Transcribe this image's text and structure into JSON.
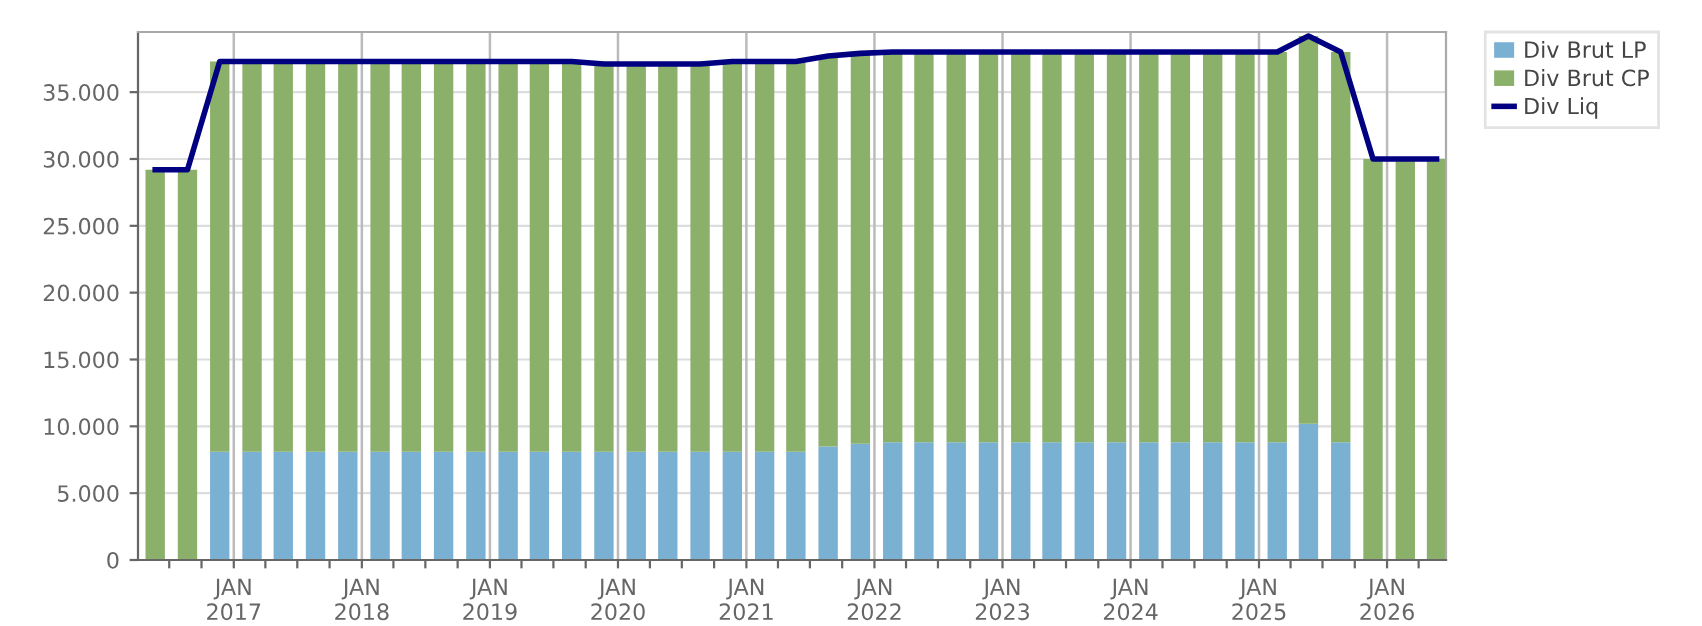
{
  "chart_data": {
    "type": "bar",
    "stacked": true,
    "x": [
      "2016-05-22",
      "2016-08-22",
      "2016-11-22",
      "2017-02-22",
      "2017-05-22",
      "2017-08-22",
      "2017-11-22",
      "2018-02-22",
      "2018-05-22",
      "2018-08-22",
      "2018-11-22",
      "2019-02-22",
      "2019-05-22",
      "2019-08-22",
      "2019-11-22",
      "2020-02-22",
      "2020-05-22",
      "2020-08-22",
      "2020-11-22",
      "2021-02-22",
      "2021-05-22",
      "2021-08-22",
      "2021-11-22",
      "2022-02-22",
      "2022-05-22",
      "2022-08-22",
      "2022-11-22",
      "2023-02-22",
      "2023-05-22",
      "2023-08-22",
      "2023-11-22",
      "2024-02-22",
      "2024-05-22",
      "2024-08-22",
      "2024-11-22",
      "2025-02-22",
      "2025-05-22",
      "2025-08-22",
      "2025-11-22",
      "2026-02-22",
      "2026-05-22"
    ],
    "series": [
      {
        "name": "Div Brut LP",
        "color": "#7ab0d2",
        "values": [
          null,
          null,
          8100,
          8100,
          8100,
          8100,
          8100,
          8100,
          8100,
          8100,
          8100,
          8100,
          8100,
          8100,
          8100,
          8100,
          8100,
          8100,
          8100,
          8100,
          8100,
          8500,
          8700,
          8800,
          8800,
          8800,
          8800,
          8800,
          8800,
          8800,
          8800,
          8800,
          8800,
          8800,
          8800,
          8800,
          10200,
          8800,
          null,
          null,
          null
        ]
      },
      {
        "name": "Div Brut CP",
        "color": "#8ab06a",
        "values": [
          29200,
          29200,
          29200,
          29200,
          29200,
          29200,
          29200,
          29200,
          29200,
          29200,
          29200,
          29200,
          29200,
          29200,
          29000,
          29000,
          29000,
          29000,
          29200,
          29200,
          29200,
          29200,
          29200,
          29200,
          29200,
          29200,
          29200,
          29200,
          29200,
          29200,
          29200,
          29200,
          29200,
          29200,
          29200,
          29200,
          29000,
          29200,
          30000,
          30000,
          30000
        ]
      },
      {
        "name": "Div Liq",
        "type": "line",
        "color": "#000080",
        "values": [
          29200,
          29200,
          37300,
          37300,
          37300,
          37300,
          37300,
          37300,
          37300,
          37300,
          37300,
          37300,
          37300,
          37300,
          37100,
          37100,
          37100,
          37100,
          37300,
          37300,
          37300,
          37700,
          37900,
          38000,
          38000,
          38000,
          38000,
          38000,
          38000,
          38000,
          38000,
          38000,
          38000,
          38000,
          38000,
          38000,
          39200,
          38000,
          30000,
          30000,
          30000
        ]
      }
    ],
    "ylim": [
      0,
      39500
    ],
    "yticks": [
      {
        "value": 0,
        "label": "0"
      },
      {
        "value": 5000,
        "label": "5.000"
      },
      {
        "value": 10000,
        "label": "10.000"
      },
      {
        "value": 15000,
        "label": "15.000"
      },
      {
        "value": 20000,
        "label": "20.000"
      },
      {
        "value": 25000,
        "label": "25.000"
      },
      {
        "value": 30000,
        "label": "30.000"
      },
      {
        "value": 35000,
        "label": "35.000"
      }
    ],
    "xlim": [
      "2016-04-03",
      "2026-06-18"
    ],
    "xticks": [
      {
        "value": "2016-07-01",
        "label": null
      },
      {
        "value": "2016-10-01",
        "label": null
      },
      {
        "value": "2017-01-01",
        "label": "JAN\n2017"
      },
      {
        "value": "2017-04-01",
        "label": null
      },
      {
        "value": "2017-07-01",
        "label": null
      },
      {
        "value": "2017-10-01",
        "label": null
      },
      {
        "value": "2018-01-01",
        "label": "JAN\n2018"
      },
      {
        "value": "2018-04-01",
        "label": null
      },
      {
        "value": "2018-07-01",
        "label": null
      },
      {
        "value": "2018-10-01",
        "label": null
      },
      {
        "value": "2019-01-01",
        "label": "JAN\n2019"
      },
      {
        "value": "2019-04-01",
        "label": null
      },
      {
        "value": "2019-07-01",
        "label": null
      },
      {
        "value": "2019-10-01",
        "label": null
      },
      {
        "value": "2020-01-01",
        "label": "JAN\n2020"
      },
      {
        "value": "2020-04-01",
        "label": null
      },
      {
        "value": "2020-07-01",
        "label": null
      },
      {
        "value": "2020-10-01",
        "label": null
      },
      {
        "value": "2021-01-01",
        "label": "JAN\n2021"
      },
      {
        "value": "2021-04-01",
        "label": null
      },
      {
        "value": "2021-07-01",
        "label": null
      },
      {
        "value": "2021-10-01",
        "label": null
      },
      {
        "value": "2022-01-01",
        "label": "JAN\n2022"
      },
      {
        "value": "2022-04-01",
        "label": null
      },
      {
        "value": "2022-07-01",
        "label": null
      },
      {
        "value": "2022-10-01",
        "label": null
      },
      {
        "value": "2023-01-01",
        "label": "JAN\n2023"
      },
      {
        "value": "2023-04-01",
        "label": null
      },
      {
        "value": "2023-07-01",
        "label": null
      },
      {
        "value": "2023-10-01",
        "label": null
      },
      {
        "value": "2024-01-01",
        "label": "JAN\n2024"
      },
      {
        "value": "2024-04-01",
        "label": null
      },
      {
        "value": "2024-07-01",
        "label": null
      },
      {
        "value": "2024-10-01",
        "label": null
      },
      {
        "value": "2025-01-01",
        "label": "JAN\n2025"
      },
      {
        "value": "2025-04-01",
        "label": null
      },
      {
        "value": "2025-07-01",
        "label": null
      },
      {
        "value": "2025-10-01",
        "label": null
      },
      {
        "value": "2026-01-01",
        "label": "JAN\n2026"
      },
      {
        "value": "2026-04-01",
        "label": null
      }
    ],
    "grid": true,
    "legend": "top right"
  }
}
